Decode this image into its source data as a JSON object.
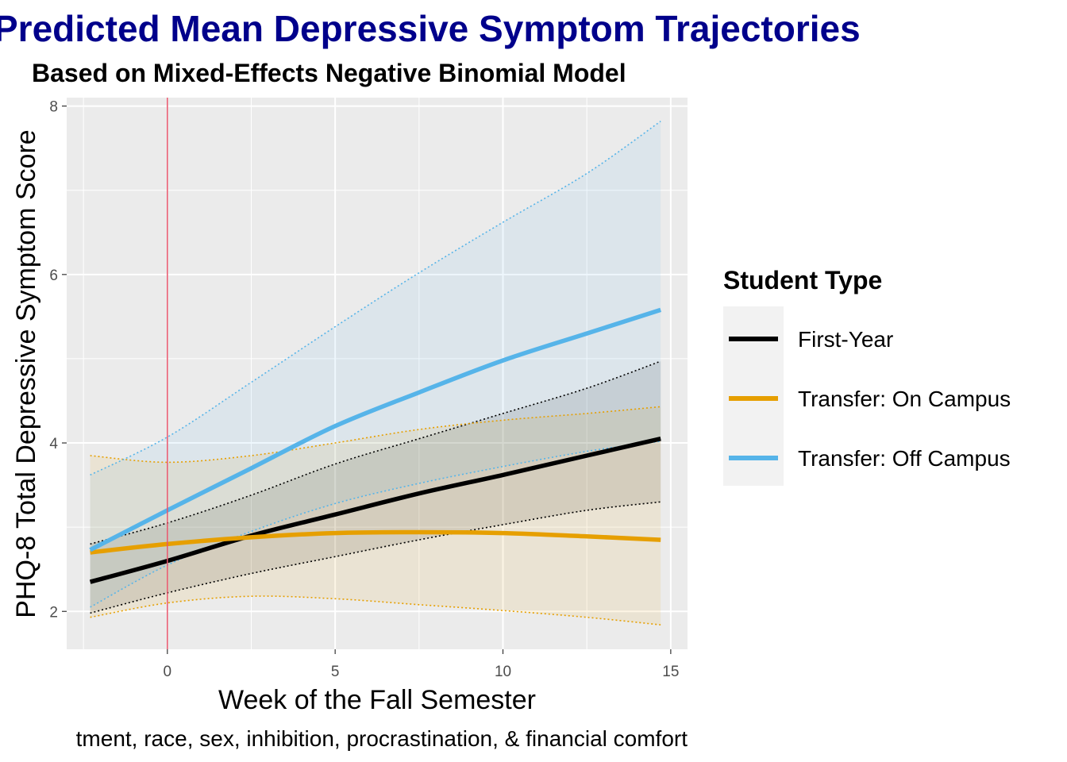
{
  "chart_data": {
    "type": "line",
    "title": "Predicted Mean Depressive Symptom Trajectories",
    "subtitle": "Based on Mixed-Effects Negative Binomial Model",
    "xlabel": "Week of the Fall Semester",
    "ylabel": "PHQ-8 Total Depressive Symptom Score",
    "caption": "tment, race, sex, inhibition, procrastination, & financial comfort",
    "xlim": [
      -3,
      15.5
    ],
    "ylim": [
      1.55,
      8.1
    ],
    "x_ticks": [
      0,
      5,
      10,
      15
    ],
    "y_ticks": [
      2,
      4,
      6,
      8
    ],
    "x_tick_labels": [
      "0",
      "5",
      "10",
      "15"
    ],
    "y_tick_labels": [
      "2",
      "4",
      "6",
      "8"
    ],
    "reference_line": {
      "x": 0,
      "color": "#e8546a"
    },
    "grid": true,
    "legend": {
      "title": "Student Type",
      "placement": "right"
    },
    "x": [
      -2.3,
      0,
      2.5,
      5,
      7.5,
      10,
      12.5,
      14.7
    ],
    "series": [
      {
        "name": "First-Year",
        "color": "#000000",
        "values": [
          2.35,
          2.6,
          2.9,
          3.15,
          3.4,
          3.62,
          3.85,
          4.05
        ],
        "lower": [
          1.98,
          2.22,
          2.45,
          2.65,
          2.85,
          3.03,
          3.2,
          3.3
        ],
        "upper": [
          2.8,
          3.05,
          3.38,
          3.75,
          4.05,
          4.35,
          4.65,
          4.97
        ]
      },
      {
        "name": "Transfer: On Campus",
        "color": "#E69F00",
        "values": [
          2.7,
          2.8,
          2.88,
          2.93,
          2.94,
          2.93,
          2.89,
          2.85
        ],
        "lower": [
          1.93,
          2.1,
          2.18,
          2.15,
          2.08,
          2.01,
          1.93,
          1.84
        ],
        "upper": [
          3.85,
          3.77,
          3.85,
          4.0,
          4.16,
          4.27,
          4.35,
          4.43
        ]
      },
      {
        "name": "Transfer: Off Campus",
        "color": "#56B4E9",
        "values": [
          2.73,
          3.2,
          3.7,
          4.2,
          4.6,
          4.98,
          5.3,
          5.58
        ],
        "lower": [
          2.05,
          2.55,
          2.95,
          3.28,
          3.52,
          3.72,
          3.9,
          4.02
        ],
        "upper": [
          3.62,
          4.07,
          4.72,
          5.38,
          6.02,
          6.62,
          7.2,
          7.82
        ]
      }
    ]
  }
}
